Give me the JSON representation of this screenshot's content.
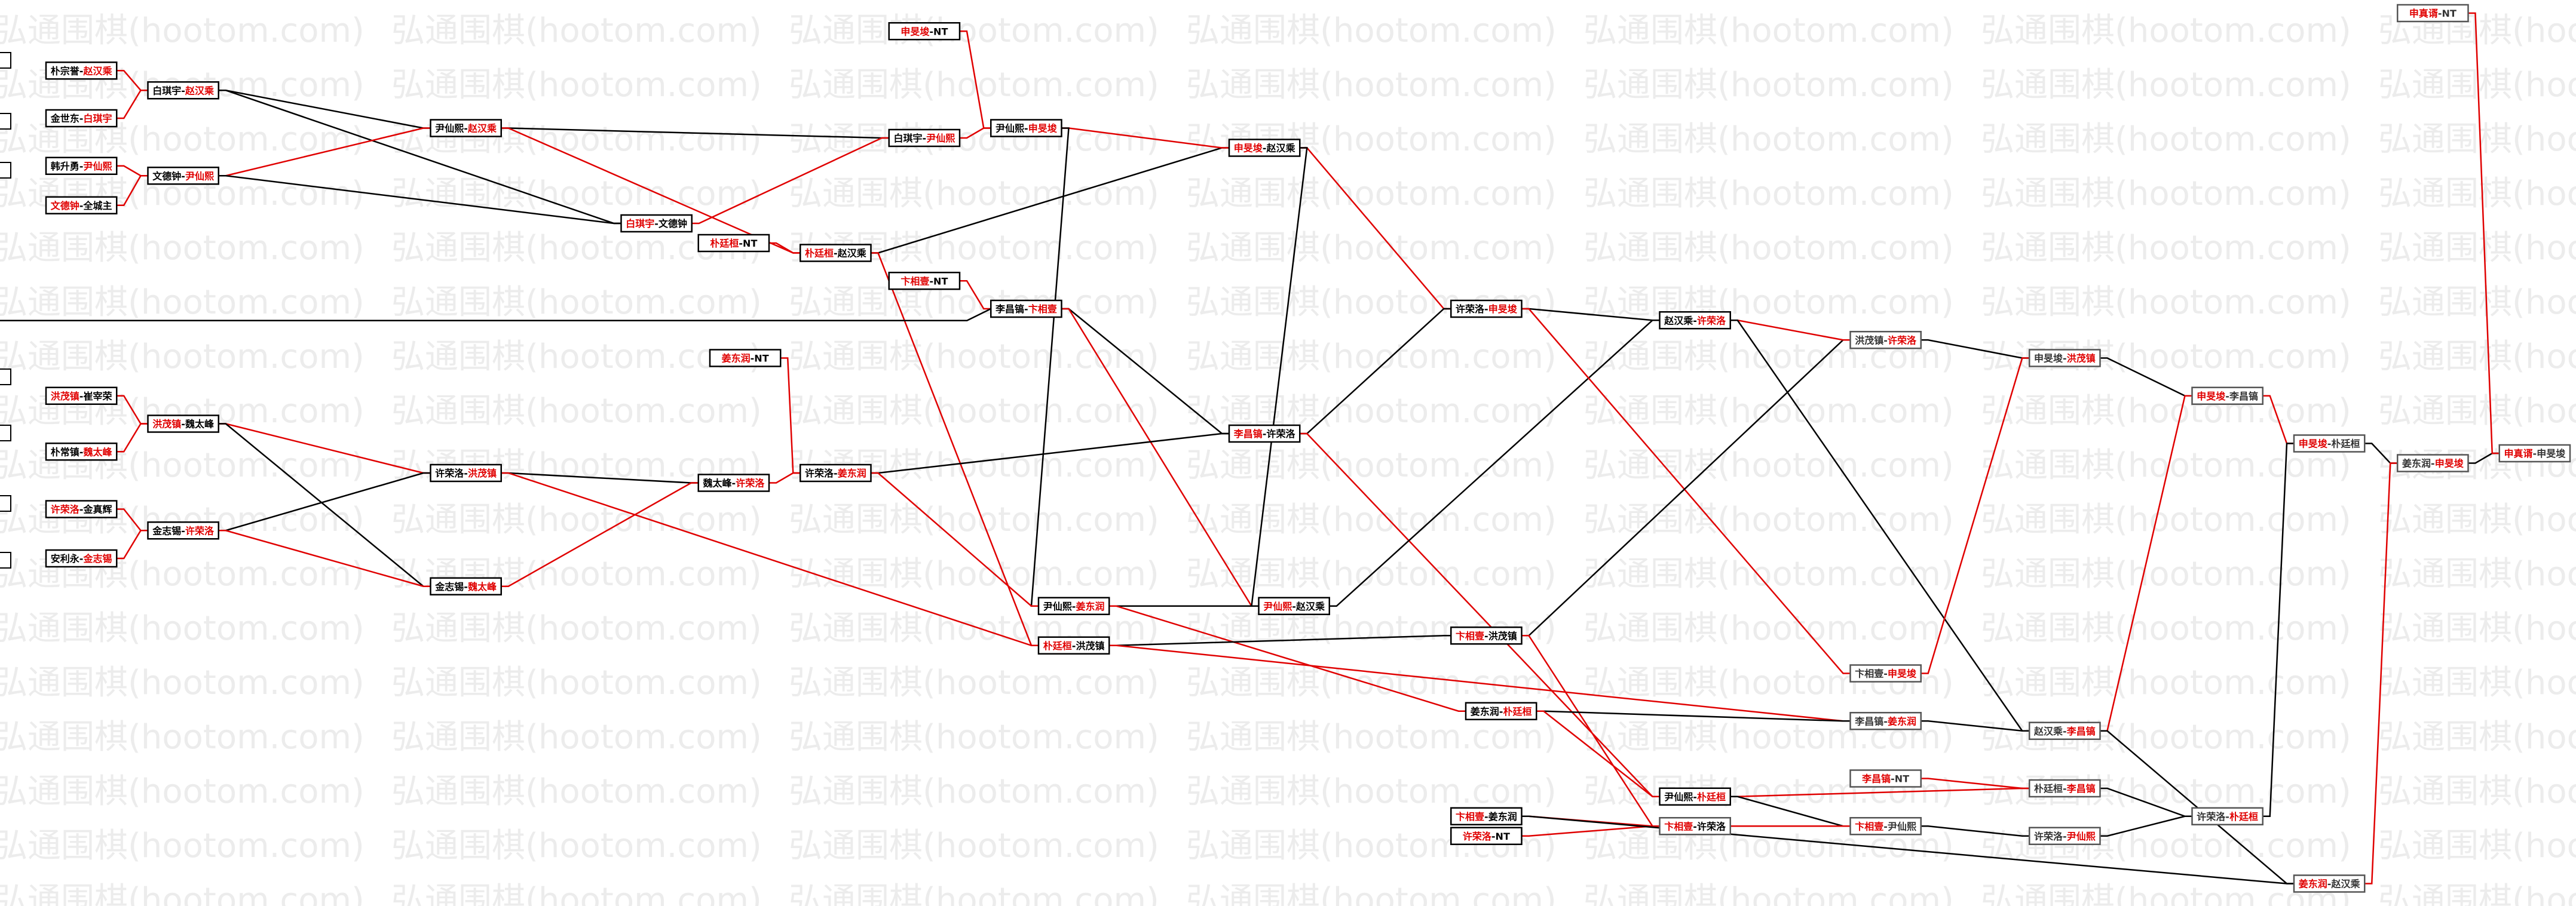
{
  "watermark": "弘通围棋(hootom.com)",
  "separator": "-",
  "nodes": [
    {
      "players": [
        "朴宗誉",
        "赵汉乘"
      ],
      "winner": 1
    },
    {
      "players": [
        "金世东",
        "白琪宇"
      ],
      "winner": 1
    },
    {
      "players": [
        "韩升勇",
        "尹仙熙"
      ],
      "winner": 1
    },
    {
      "players": [
        "文德钟",
        "全城主"
      ],
      "winner": 0
    },
    {
      "players": [
        "洪茂镇",
        "崔宰荣"
      ],
      "winner": 0
    },
    {
      "players": [
        "朴常镇",
        "魏太峰"
      ],
      "winner": 1
    },
    {
      "players": [
        "许荣洛",
        "金真辉"
      ],
      "winner": 0
    },
    {
      "players": [
        "安利永",
        "金志锡"
      ],
      "winner": 1
    },
    {
      "players": [
        "白琪宇",
        "赵汉乘"
      ],
      "winner": 1
    },
    {
      "players": [
        "文德钟",
        "尹仙熙"
      ],
      "winner": 1
    },
    {
      "players": [
        "洪茂镇",
        "魏太峰"
      ],
      "winner": 0
    },
    {
      "players": [
        "金志锡",
        "许荣洛"
      ],
      "winner": 1
    },
    {
      "players": [
        "尹仙熙",
        "赵汉乘"
      ],
      "winner": 1
    },
    {
      "players": [
        "许荣洛",
        "洪茂镇"
      ],
      "winner": 1
    },
    {
      "players": [
        "金志锡",
        "魏太峰"
      ],
      "winner": 1
    },
    {
      "players": [
        "白琪宇",
        "文德钟"
      ],
      "winner": 0
    },
    {
      "players": [
        "朴廷桓",
        "NT"
      ],
      "winner": 0
    },
    {
      "players": [
        "魏太峰",
        "许荣洛"
      ],
      "winner": 1
    },
    {
      "players": [
        "姜东润",
        "NT"
      ],
      "winner": 0
    },
    {
      "players": [
        "朴廷桓",
        "赵汉乘"
      ],
      "winner": 0
    },
    {
      "players": [
        "许荣洛",
        "姜东润"
      ],
      "winner": 1
    },
    {
      "players": [
        "申旻埈",
        "NT"
      ],
      "winner": 0
    },
    {
      "players": [
        "白琪宇",
        "尹仙熙"
      ],
      "winner": 1
    },
    {
      "players": [
        "卞相壹",
        "NT"
      ],
      "winner": 0
    },
    {
      "players": [
        "尹仙熙",
        "申旻埈"
      ],
      "winner": 1
    },
    {
      "players": [
        "李昌镐",
        "卞相壹"
      ],
      "winner": 1
    },
    {
      "players": [
        "尹仙熙",
        "姜东润"
      ],
      "winner": 1
    },
    {
      "players": [
        "朴廷桓",
        "洪茂镇"
      ],
      "winner": 0
    },
    {
      "players": [
        "申旻埈",
        "赵汉乘"
      ],
      "winner": 0
    },
    {
      "players": [
        "李昌镐",
        "许荣洛"
      ],
      "winner": 0
    },
    {
      "players": [
        "尹仙熙",
        "赵汉乘"
      ],
      "winner": 0
    },
    {
      "players": [
        "许荣洛",
        "申旻埈"
      ],
      "winner": 1
    },
    {
      "players": [
        "卞相壹",
        "洪茂镇"
      ],
      "winner": 0
    },
    {
      "players": [
        "姜东润",
        "朴廷桓"
      ],
      "winner": 1
    },
    {
      "players": [
        "赵汉乘",
        "许荣洛"
      ],
      "winner": 1
    },
    {
      "players": [
        "尹仙熙",
        "朴廷桓"
      ],
      "winner": 1
    },
    {
      "players": [
        "卞相壹",
        "许荣洛"
      ],
      "winner": 0
    },
    {
      "players": [
        "卞相壹",
        "姜东润"
      ],
      "winner": 0
    },
    {
      "players": [
        "许荣洛",
        "NT"
      ],
      "winner": 0
    },
    {
      "players": [
        "洪茂镇",
        "许荣洛"
      ],
      "winner": 1
    },
    {
      "players": [
        "卞相壹",
        "申旻埈"
      ],
      "winner": 1
    },
    {
      "players": [
        "李昌镐",
        "姜东润"
      ],
      "winner": 1
    },
    {
      "players": [
        "李昌镐",
        "NT"
      ],
      "winner": 0
    },
    {
      "players": [
        "卞相壹",
        "尹仙熙"
      ],
      "winner": 0
    },
    {
      "players": [
        "申旻埈",
        "洪茂镇"
      ],
      "winner": 1
    },
    {
      "players": [
        "赵汉乘",
        "李昌镐"
      ],
      "winner": 1
    },
    {
      "players": [
        "朴廷桓",
        "李昌镐"
      ],
      "winner": 1
    },
    {
      "players": [
        "许荣洛",
        "尹仙熙"
      ],
      "winner": 1
    },
    {
      "players": [
        "申旻埈",
        "李昌镐"
      ],
      "winner": 0
    },
    {
      "players": [
        "许荣洛",
        "朴廷桓"
      ],
      "winner": 1
    },
    {
      "players": [
        "申旻埈",
        "朴廷桓"
      ],
      "winner": 0
    },
    {
      "players": [
        "姜东润",
        "赵汉乘"
      ],
      "winner": 0
    },
    {
      "players": [
        "姜东润",
        "申旻埈"
      ],
      "winner": 1
    },
    {
      "players": [
        "申真谞",
        "NT"
      ],
      "winner": 0
    },
    {
      "players": [
        "申真谞",
        "申旻埈"
      ],
      "winner": 0
    }
  ]
}
